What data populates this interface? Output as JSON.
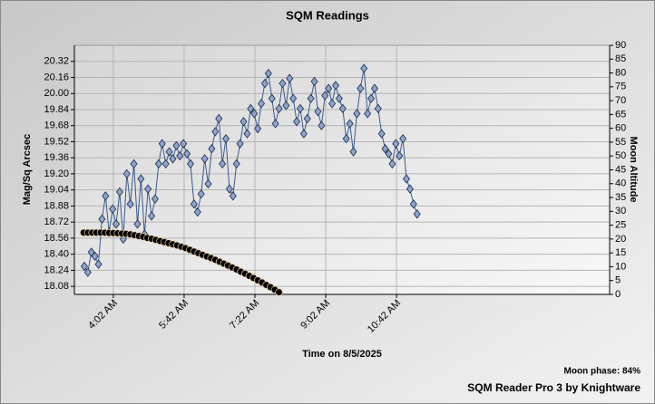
{
  "chart_data": {
    "type": "line",
    "title": "SQM Readings",
    "x_label": "Time on 8/5/2025",
    "y_label": "Mag/Sq Arcsec",
    "y2_label": "Moon Altitude",
    "annotations": [
      "Moon phase: 84%",
      "SQM Reader Pro 3 by Knightware"
    ],
    "xlim": [
      187,
      943
    ],
    "xticks": [
      {
        "value": 242,
        "label": "4:02 AM"
      },
      {
        "value": 342,
        "label": "5:42 AM"
      },
      {
        "value": 442,
        "label": "7:22 AM"
      },
      {
        "value": 542,
        "label": "9:02 AM"
      },
      {
        "value": 642,
        "label": "10:42 AM"
      }
    ],
    "ylim": [
      18.0,
      20.48
    ],
    "yticks": [
      18.08,
      18.24,
      {
        "value": 18.4,
        "label": "18.40"
      },
      18.56,
      18.72,
      18.88,
      19.04,
      {
        "value": 19.2,
        "label": "19.20"
      },
      19.36,
      19.52,
      19.68,
      19.84,
      {
        "value": 20,
        "label": "20.00"
      },
      20.16,
      20.32
    ],
    "y2lim": [
      0,
      90
    ],
    "y2ticks": [
      0,
      5,
      10,
      15,
      20,
      25,
      30,
      35,
      40,
      45,
      50,
      55,
      60,
      65,
      70,
      75,
      80,
      85,
      90
    ],
    "grid": true,
    "series": [
      {
        "color": "#8ea4cc",
        "marker": "diamond",
        "x": [
          201,
          206,
          211,
          216,
          221,
          226,
          231,
          236,
          241,
          246,
          251,
          256,
          261,
          266,
          271,
          276,
          281,
          286,
          291,
          296,
          301,
          306,
          311,
          316,
          321,
          326,
          331,
          336,
          341,
          346,
          351,
          356,
          361,
          366,
          371,
          376,
          381,
          386,
          391,
          396,
          401,
          406,
          411,
          416,
          421,
          426,
          431,
          436,
          441,
          446,
          451,
          456,
          461,
          466,
          471,
          476,
          481,
          486,
          491,
          496,
          501,
          506,
          511,
          516,
          521,
          526,
          531,
          536,
          541,
          546,
          551,
          556,
          561,
          566,
          571,
          576,
          581,
          586,
          591,
          596,
          601,
          606,
          611,
          616,
          621,
          626,
          631,
          636,
          641,
          646,
          651,
          656,
          661,
          666,
          671
        ],
        "values": [
          18.28,
          18.22,
          18.42,
          18.38,
          18.3,
          18.75,
          18.98,
          18.62,
          18.85,
          18.7,
          19.02,
          18.55,
          19.2,
          18.9,
          19.3,
          18.7,
          19.15,
          18.6,
          19.05,
          18.78,
          18.95,
          19.3,
          19.5,
          19.3,
          19.42,
          19.35,
          19.48,
          19.38,
          19.5,
          19.4,
          19.3,
          18.9,
          18.82,
          19.0,
          19.35,
          19.1,
          19.45,
          19.62,
          19.75,
          19.3,
          19.55,
          19.05,
          18.98,
          19.3,
          19.5,
          19.72,
          19.6,
          19.85,
          19.8,
          19.65,
          19.9,
          20.1,
          20.2,
          19.95,
          19.7,
          19.85,
          20.1,
          19.88,
          20.15,
          19.95,
          19.72,
          19.85,
          19.6,
          19.75,
          19.95,
          20.12,
          19.82,
          19.68,
          19.98,
          20.05,
          19.9,
          20.08,
          19.95,
          19.85,
          19.55,
          19.7,
          19.42,
          19.8,
          20.05,
          20.25,
          19.8,
          19.95,
          20.05,
          19.85,
          19.6,
          19.45,
          19.4,
          19.3,
          19.5,
          19.38,
          19.55,
          19.15,
          19.05,
          18.9,
          18.8
        ]
      },
      {
        "color": "#000000",
        "marker": "circle",
        "axis": "y2",
        "x": [
          200,
          206,
          212,
          218,
          224,
          230,
          236,
          242,
          248,
          254,
          260,
          266,
          272,
          278,
          284,
          290,
          296,
          302,
          308,
          314,
          320,
          326,
          332,
          338,
          344,
          350,
          356,
          362,
          368,
          374,
          380,
          386,
          392,
          398,
          404,
          410,
          416,
          422,
          428,
          434,
          440,
          446,
          452,
          458,
          464,
          470,
          476
        ],
        "values": [
          22.3,
          22.3,
          22.3,
          22.3,
          22.3,
          22.3,
          22.2,
          22.2,
          22.1,
          22.0,
          21.9,
          21.7,
          21.4,
          21.1,
          20.8,
          20.4,
          20.1,
          19.7,
          19.3,
          18.9,
          18.5,
          18.1,
          17.7,
          17.2,
          16.7,
          16.1,
          15.5,
          14.9,
          14.3,
          13.7,
          13.1,
          12.5,
          11.8,
          11.1,
          10.4,
          9.7,
          9.0,
          8.2,
          7.5,
          6.7,
          5.9,
          5.1,
          4.3,
          3.4,
          2.6,
          1.7,
          0.8
        ]
      }
    ]
  }
}
